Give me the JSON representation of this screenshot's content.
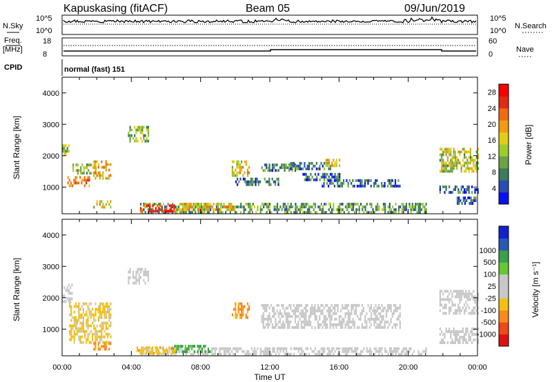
{
  "header": {
    "station": "Kapuskasing (fitACF)",
    "beam": "Beam 05",
    "date": "09/Jun/2019"
  },
  "status_panel": {
    "left_top": "N.Sky",
    "left_mid": "Freq.",
    "left_unit": "[MHz]",
    "left_bottom": "CPID",
    "right_top": "N.Search",
    "right_mid": "Nave",
    "sky_ticks": [
      "10^5",
      "10^0"
    ],
    "freq_ticks": [
      "18",
      "8"
    ],
    "nave_ticks": [
      "60",
      "0"
    ],
    "cpid_label": "normal (fast) 151"
  },
  "colors": {
    "power": [
      "#0a10f0",
      "#2a4cb0",
      "#3c7b5c",
      "#6aa346",
      "#9ccd2a",
      "#e3cc14",
      "#f39a14",
      "#f36a14",
      "#e42a14",
      "#ff0000"
    ],
    "velocity": [
      "#e01010",
      "#f04818",
      "#f88a1a",
      "#f2c010",
      "#c8c8c8",
      "#c8c8c8",
      "#64c832",
      "#3aa04a",
      "#2a58b4",
      "#1420d0"
    ]
  },
  "chart_data": [
    {
      "type": "heatmap",
      "ylabel": "Slant Range [km]",
      "xlabel": "",
      "xticks": [
        "00:00",
        "04:00",
        "08:00",
        "12:00",
        "16:00",
        "20:00",
        "00:00"
      ],
      "yticks": [
        "1000",
        "2000",
        "3000",
        "4000"
      ],
      "ylim": [
        150,
        4500
      ],
      "xlim_hours": [
        0,
        24
      ],
      "colorbar": {
        "label": "Power [dB]",
        "ticks": [
          "4",
          "8",
          "12",
          "16",
          "20",
          "24",
          "28"
        ],
        "range": [
          0,
          30
        ]
      },
      "regions": [
        {
          "t0": 0.0,
          "t1": 0.4,
          "r0": 2050,
          "r1": 2450,
          "val": 12
        },
        {
          "t0": 0.3,
          "t1": 1.6,
          "r0": 1050,
          "r1": 1350,
          "val": 20
        },
        {
          "t0": 0.6,
          "t1": 2.0,
          "r0": 1450,
          "r1": 1750,
          "val": 14
        },
        {
          "t0": 1.8,
          "t1": 2.8,
          "r0": 1300,
          "r1": 1850,
          "val": 18
        },
        {
          "t0": 1.8,
          "t1": 2.8,
          "r0": 380,
          "r1": 580,
          "val": 14
        },
        {
          "t0": 3.8,
          "t1": 5.0,
          "r0": 2500,
          "r1": 2950,
          "val": 12
        },
        {
          "t0": 4.5,
          "t1": 21.0,
          "r0": 200,
          "r1": 500,
          "val": 10
        },
        {
          "t0": 4.5,
          "t1": 6.5,
          "r0": 200,
          "r1": 450,
          "val": 28
        },
        {
          "t0": 6.5,
          "t1": 10.0,
          "r0": 250,
          "r1": 500,
          "val": 18
        },
        {
          "t0": 9.8,
          "t1": 10.8,
          "r0": 1350,
          "r1": 1850,
          "val": 16
        },
        {
          "t0": 11.5,
          "t1": 13.5,
          "r0": 1550,
          "r1": 1750,
          "val": 8
        },
        {
          "t0": 13.0,
          "t1": 15.5,
          "r0": 1600,
          "r1": 1800,
          "val": 8
        },
        {
          "t0": 13.8,
          "t1": 16.0,
          "r0": 1200,
          "r1": 1450,
          "val": 6
        },
        {
          "t0": 15.0,
          "t1": 19.5,
          "r0": 1050,
          "r1": 1250,
          "val": 6
        },
        {
          "t0": 10.0,
          "t1": 12.5,
          "r0": 1050,
          "r1": 1300,
          "val": 6
        },
        {
          "t0": 15.2,
          "t1": 16.0,
          "r0": 1700,
          "r1": 1900,
          "val": 18
        },
        {
          "t0": 21.8,
          "t1": 24.0,
          "r0": 1500,
          "r1": 2250,
          "val": 14
        },
        {
          "t0": 21.8,
          "t1": 24.0,
          "r0": 850,
          "r1": 1050,
          "val": 6
        },
        {
          "t0": 22.8,
          "t1": 24.0,
          "r0": 500,
          "r1": 700,
          "val": 6
        }
      ]
    },
    {
      "type": "heatmap",
      "ylabel": "Slant Range [km]",
      "xlabel": "Time UT",
      "xticks": [
        "00:00",
        "04:00",
        "08:00",
        "12:00",
        "16:00",
        "20:00",
        "00:00"
      ],
      "yticks": [
        "1000",
        "2000",
        "3000",
        "4000"
      ],
      "ylim": [
        150,
        4500
      ],
      "xlim_hours": [
        0,
        24
      ],
      "colorbar": {
        "label": "Velocity [m s⁻¹]",
        "ticks": [
          "-1000",
          "-500",
          "-100",
          "-25",
          "25",
          "100",
          "500",
          "1000"
        ]
      },
      "regions": [
        {
          "t0": 0.0,
          "t1": 0.6,
          "r0": 1900,
          "r1": 2450,
          "val": 0
        },
        {
          "t0": 0.4,
          "t1": 2.8,
          "r0": 600,
          "r1": 1850,
          "val": -40
        },
        {
          "t0": 1.8,
          "t1": 2.8,
          "r0": 380,
          "r1": 580,
          "val": -150
        },
        {
          "t0": 3.8,
          "t1": 5.0,
          "r0": 2500,
          "r1": 2950,
          "val": 0
        },
        {
          "t0": 4.5,
          "t1": 21.0,
          "r0": 200,
          "r1": 420,
          "val": 0
        },
        {
          "t0": 6.3,
          "t1": 8.5,
          "r0": 250,
          "r1": 500,
          "val": 120
        },
        {
          "t0": 4.3,
          "t1": 6.5,
          "r0": 250,
          "r1": 450,
          "val": -60
        },
        {
          "t0": 9.8,
          "t1": 10.8,
          "r0": 1350,
          "r1": 1850,
          "val": -150
        },
        {
          "t0": 11.5,
          "t1": 19.5,
          "r0": 1050,
          "r1": 1800,
          "val": 0
        },
        {
          "t0": 21.8,
          "t1": 24.0,
          "r0": 1500,
          "r1": 2250,
          "val": 0
        },
        {
          "t0": 21.8,
          "t1": 24.0,
          "r0": 600,
          "r1": 1050,
          "val": 0
        }
      ]
    }
  ]
}
